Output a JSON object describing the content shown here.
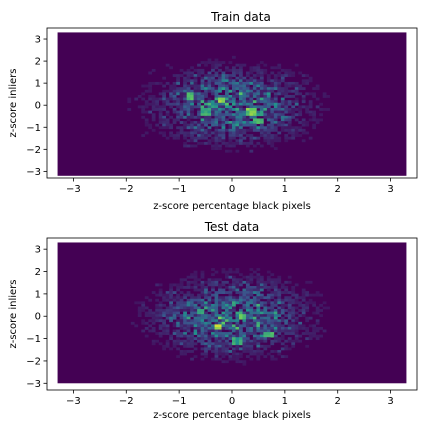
{
  "chart_data": [
    {
      "type": "heatmap",
      "subtype": "hexbin",
      "title": "Train data",
      "xlabel": "z-score percentage black pixels",
      "ylabel": "z-score inliers",
      "xlim": [
        -3.5,
        3.5
      ],
      "ylim": [
        -3.3,
        3.5
      ],
      "xticks": [
        -3,
        -2,
        -1,
        0,
        1,
        2,
        3
      ],
      "yticks": [
        -3,
        -2,
        -1,
        0,
        1,
        2,
        3
      ],
      "extent": {
        "x": [
          -3.3,
          3.3
        ],
        "y": [
          -3.2,
          3.3
        ]
      },
      "gridsize": [
        100,
        55
      ],
      "colormap": "viridis",
      "background_color": "#440154",
      "hotspots": [
        {
          "x": -0.2,
          "y": 0.2,
          "intensity": 0.9
        },
        {
          "x": 0.35,
          "y": -0.3,
          "intensity": 0.85
        },
        {
          "x": -0.8,
          "y": 0.4,
          "intensity": 0.8
        },
        {
          "x": 0.5,
          "y": -0.7,
          "intensity": 0.75
        },
        {
          "x": -0.5,
          "y": -0.3,
          "intensity": 0.7
        }
      ],
      "grid": false
    },
    {
      "type": "heatmap",
      "subtype": "hexbin",
      "title": "Test data",
      "xlabel": "z-score percentage black pixels",
      "ylabel": "z-score inliers",
      "xlim": [
        -3.5,
        3.5
      ],
      "ylim": [
        -3.3,
        3.5
      ],
      "xticks": [
        -3,
        -2,
        -1,
        0,
        1,
        2,
        3
      ],
      "yticks": [
        -3,
        -2,
        -1,
        0,
        1,
        2,
        3
      ],
      "extent": {
        "x": [
          -3.3,
          3.3
        ],
        "y": [
          -3.0,
          3.3
        ]
      },
      "gridsize": [
        100,
        55
      ],
      "colormap": "viridis",
      "background_color": "#440154",
      "hotspots": [
        {
          "x": -0.25,
          "y": -0.5,
          "intensity": 1.0
        },
        {
          "x": 0.2,
          "y": 0.0,
          "intensity": 0.8
        },
        {
          "x": 0.7,
          "y": -0.8,
          "intensity": 0.75
        },
        {
          "x": -0.6,
          "y": 0.2,
          "intensity": 0.7
        },
        {
          "x": 0.1,
          "y": -1.1,
          "intensity": 0.65
        }
      ],
      "grid": false
    }
  ]
}
